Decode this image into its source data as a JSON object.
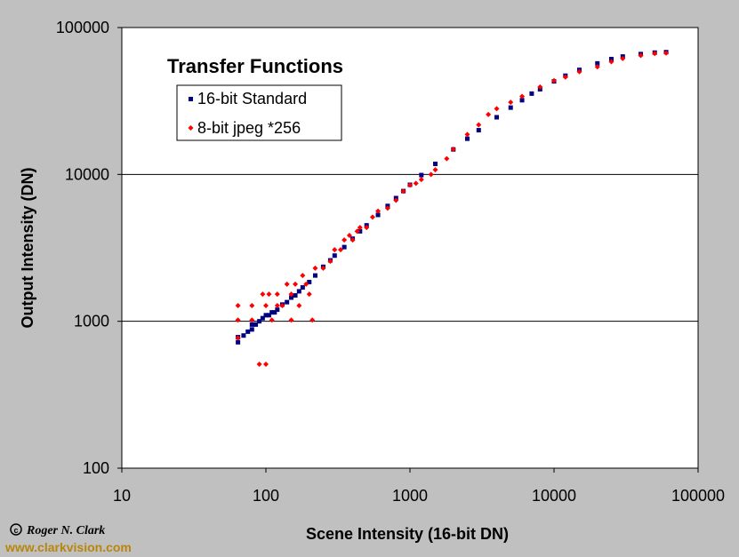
{
  "chart_data": {
    "type": "scatter",
    "title": "Transfer Functions",
    "xlabel": "Scene Intensity (16-bit DN)",
    "ylabel": "Output Intensity (DN)",
    "xscale": "log",
    "yscale": "log",
    "xlim": [
      10,
      100000
    ],
    "ylim": [
      100,
      100000
    ],
    "x_ticks": [
      "10",
      "100",
      "1000",
      "10000",
      "100000"
    ],
    "y_ticks": [
      "100",
      "1000",
      "10000",
      "100000"
    ],
    "grid": "horizontal major",
    "legend_position": "top-left",
    "series": [
      {
        "name": "16-bit Standard",
        "color": "#000080",
        "marker": "square",
        "x": [
          64,
          64,
          70,
          75,
          80,
          80,
          85,
          90,
          95,
          100,
          105,
          110,
          115,
          120,
          130,
          140,
          150,
          160,
          170,
          180,
          200,
          220,
          250,
          280,
          300,
          350,
          400,
          450,
          500,
          600,
          700,
          800,
          900,
          1000,
          1200,
          1500,
          2000,
          2500,
          3000,
          4000,
          5000,
          6000,
          7000,
          8000,
          10000,
          12000,
          15000,
          20000,
          25000,
          30000,
          40000,
          50000,
          60000
        ],
        "y": [
          720,
          780,
          800,
          850,
          880,
          950,
          950,
          1000,
          1050,
          1100,
          1100,
          1150,
          1150,
          1200,
          1300,
          1350,
          1450,
          1500,
          1600,
          1700,
          1850,
          2050,
          2350,
          2600,
          2800,
          3200,
          3650,
          4100,
          4500,
          5300,
          6100,
          6900,
          7700,
          8500,
          9900,
          11800,
          14800,
          17500,
          20000,
          24500,
          28500,
          32000,
          35500,
          38000,
          43000,
          47000,
          51500,
          57000,
          61000,
          63500,
          66000,
          67500,
          68000
        ]
      },
      {
        "name": "8-bit jpeg *256",
        "color": "#ff0000",
        "marker": "diamond",
        "x": [
          64,
          64,
          64,
          80,
          80,
          90,
          95,
          100,
          100,
          105,
          110,
          120,
          120,
          130,
          140,
          150,
          150,
          160,
          170,
          180,
          190,
          200,
          210,
          220,
          250,
          280,
          300,
          330,
          350,
          380,
          400,
          430,
          450,
          500,
          550,
          600,
          700,
          800,
          900,
          1000,
          1100,
          1200,
          1400,
          1500,
          1800,
          2000,
          2500,
          3000,
          3500,
          4000,
          5000,
          6000,
          8000,
          10000,
          12000,
          15000,
          20000,
          25000,
          30000,
          40000,
          50000,
          60000
        ],
        "y": [
          1280,
          1020,
          770,
          1280,
          1020,
          510,
          1530,
          1280,
          510,
          1530,
          1020,
          1530,
          1280,
          1280,
          1790,
          1530,
          1020,
          1790,
          1280,
          2050,
          1790,
          1530,
          1020,
          2300,
          2300,
          2560,
          3070,
          3070,
          3580,
          3840,
          3580,
          4100,
          4350,
          4350,
          5120,
          5630,
          5890,
          6660,
          7680,
          8450,
          8700,
          9220,
          10000,
          10750,
          12800,
          14850,
          18700,
          21760,
          25600,
          28000,
          31000,
          34000,
          39400,
          43500,
          46000,
          50000,
          54000,
          58500,
          61500,
          64500,
          66500,
          67000
        ]
      }
    ]
  },
  "credit": {
    "copyright_symbol": "c",
    "author": "Roger N. Clark",
    "website": "www.clarkvision.com"
  },
  "colors": {
    "background": "#c0c0c0",
    "plot_area": "#ffffff",
    "site_text": "#b8860b"
  }
}
